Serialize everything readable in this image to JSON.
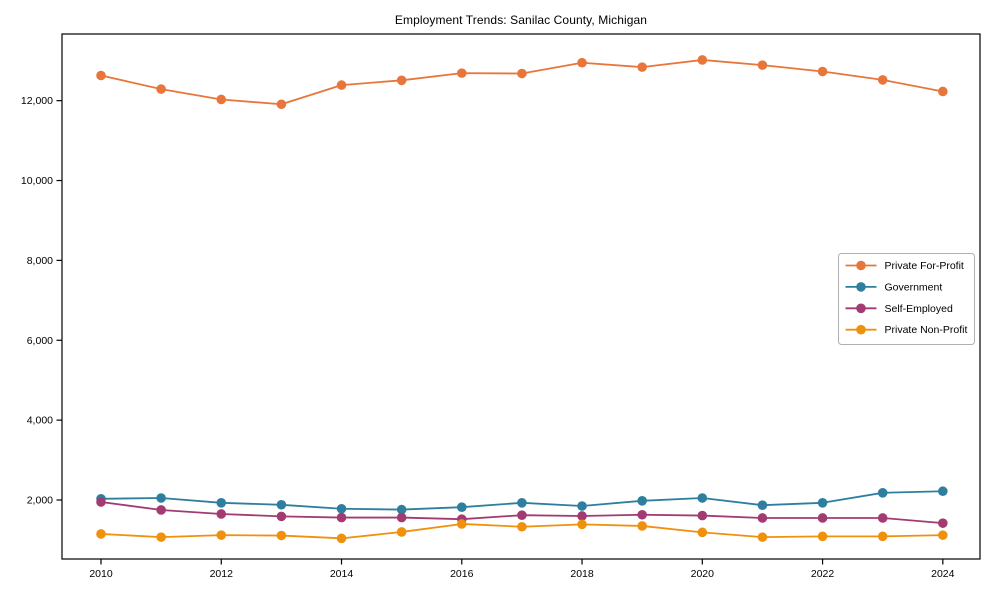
{
  "chart_data": {
    "type": "line",
    "title": "Employment Trends: Sanilac County, Michigan",
    "xlabel": "",
    "ylabel": "",
    "x": [
      2010,
      2011,
      2012,
      2013,
      2014,
      2015,
      2016,
      2017,
      2018,
      2019,
      2020,
      2021,
      2022,
      2023,
      2024
    ],
    "series": [
      {
        "name": "Private For-Profit",
        "color": "#e8763b",
        "values": [
          12630,
          12290,
          12030,
          11910,
          12390,
          12510,
          12690,
          12680,
          12950,
          12840,
          13020,
          12890,
          12730,
          12520,
          12230
        ]
      },
      {
        "name": "Government",
        "color": "#2e7f9f",
        "values": [
          2030,
          2050,
          1930,
          1880,
          1780,
          1760,
          1820,
          1930,
          1850,
          1980,
          2050,
          1870,
          1930,
          2180,
          2220
        ]
      },
      {
        "name": "Self-Employed",
        "color": "#a23b72",
        "values": [
          1950,
          1750,
          1650,
          1590,
          1560,
          1560,
          1520,
          1620,
          1600,
          1630,
          1610,
          1550,
          1550,
          1550,
          1420
        ]
      },
      {
        "name": "Private Non-Profit",
        "color": "#f0910e",
        "values": [
          1150,
          1070,
          1120,
          1110,
          1040,
          1200,
          1400,
          1330,
          1390,
          1350,
          1190,
          1070,
          1090,
          1090,
          1120
        ]
      }
    ],
    "xticks": [
      2010,
      2012,
      2014,
      2016,
      2018,
      2020,
      2022,
      2024
    ],
    "yticks": [
      2000,
      4000,
      6000,
      8000,
      10000,
      12000
    ],
    "ytick_labels": [
      "2,000",
      "4,000",
      "6,000",
      "8,000",
      "10,000",
      "12,000"
    ],
    "ylim": [
      500,
      13650
    ],
    "xlim": [
      2009.35,
      2024.6
    ],
    "grid": false,
    "legend_position": "right",
    "axis_color": "#000000",
    "background_color": "#ffffff",
    "legend_border_color": "#b0b0b0"
  }
}
